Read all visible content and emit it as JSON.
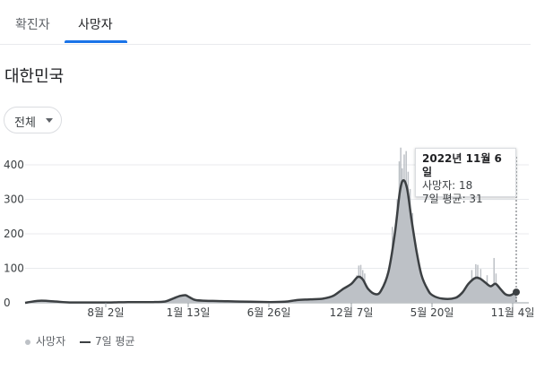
{
  "tabs": [
    {
      "label": "확진자",
      "active": false
    },
    {
      "label": "사망자",
      "active": true
    }
  ],
  "region": "대한민국",
  "filter": {
    "label": "전체"
  },
  "tooltip": {
    "date": "2022년 11월 6일",
    "deaths": "사망자: 18",
    "avg": "7일 평균: 31"
  },
  "legend": {
    "deaths": "사망자",
    "avg": "7일 평균"
  },
  "colors": {
    "accent": "#1a73e8",
    "bars": "#bdc1c6",
    "area": "#bdc1c6",
    "line": "#3c4043"
  },
  "chart_data": {
    "type": "area",
    "x_ticks": [
      "8월 2일",
      "1월 13일",
      "6월 26일",
      "12월 7일",
      "5월 20일",
      "11월 4일"
    ],
    "y_ticks": [
      "0",
      "100",
      "200",
      "300",
      "400"
    ],
    "ylim": [
      0,
      450
    ],
    "x_range": [
      "2020-02-15",
      "2022-11-06"
    ],
    "series": [
      {
        "name": "7일 평균",
        "points": [
          [
            "2020-02-15",
            0
          ],
          [
            "2020-03-15",
            6
          ],
          [
            "2020-04-15",
            4
          ],
          [
            "2020-05-15",
            1
          ],
          [
            "2020-07-01",
            1
          ],
          [
            "2020-08-02",
            1
          ],
          [
            "2020-09-10",
            2
          ],
          [
            "2020-11-01",
            2
          ],
          [
            "2020-11-25",
            4
          ],
          [
            "2020-12-10",
            12
          ],
          [
            "2020-12-25",
            20
          ],
          [
            "2021-01-05",
            22
          ],
          [
            "2021-01-13",
            16
          ],
          [
            "2021-01-25",
            8
          ],
          [
            "2021-02-15",
            6
          ],
          [
            "2021-03-15",
            5
          ],
          [
            "2021-04-15",
            4
          ],
          [
            "2021-05-15",
            3
          ],
          [
            "2021-06-26",
            2
          ],
          [
            "2021-07-25",
            3
          ],
          [
            "2021-08-20",
            8
          ],
          [
            "2021-09-15",
            10
          ],
          [
            "2021-10-10",
            12
          ],
          [
            "2021-10-31",
            20
          ],
          [
            "2021-11-20",
            40
          ],
          [
            "2021-12-07",
            55
          ],
          [
            "2021-12-20",
            75
          ],
          [
            "2021-12-30",
            68
          ],
          [
            "2022-01-10",
            40
          ],
          [
            "2022-01-25",
            25
          ],
          [
            "2022-02-05",
            35
          ],
          [
            "2022-02-20",
            90
          ],
          [
            "2022-03-05",
            200
          ],
          [
            "2022-03-15",
            320
          ],
          [
            "2022-03-22",
            355
          ],
          [
            "2022-03-30",
            330
          ],
          [
            "2022-04-08",
            240
          ],
          [
            "2022-04-18",
            150
          ],
          [
            "2022-04-28",
            80
          ],
          [
            "2022-05-10",
            40
          ],
          [
            "2022-05-20",
            22
          ],
          [
            "2022-06-10",
            12
          ],
          [
            "2022-07-05",
            14
          ],
          [
            "2022-07-20",
            30
          ],
          [
            "2022-08-01",
            55
          ],
          [
            "2022-08-15",
            72
          ],
          [
            "2022-08-25",
            70
          ],
          [
            "2022-09-05",
            58
          ],
          [
            "2022-09-15",
            48
          ],
          [
            "2022-09-25",
            55
          ],
          [
            "2022-10-05",
            40
          ],
          [
            "2022-10-15",
            25
          ],
          [
            "2022-10-25",
            22
          ],
          [
            "2022-11-06",
            31
          ]
        ]
      },
      {
        "name": "사망자",
        "bars": [
          [
            "2021-12-18",
            80
          ],
          [
            "2021-12-22",
            108
          ],
          [
            "2021-12-26",
            110
          ],
          [
            "2021-12-30",
            95
          ],
          [
            "2022-01-03",
            85
          ],
          [
            "2022-02-28",
            220
          ],
          [
            "2022-03-05",
            200
          ],
          [
            "2022-03-10",
            300
          ],
          [
            "2022-03-14",
            410
          ],
          [
            "2022-03-17",
            450
          ],
          [
            "2022-03-20",
            390
          ],
          [
            "2022-03-24",
            430
          ],
          [
            "2022-03-28",
            440
          ],
          [
            "2022-04-01",
            380
          ],
          [
            "2022-04-05",
            330
          ],
          [
            "2022-04-10",
            260
          ],
          [
            "2022-08-08",
            95
          ],
          [
            "2022-08-16",
            112
          ],
          [
            "2022-08-20",
            110
          ],
          [
            "2022-08-26",
            98
          ],
          [
            "2022-09-08",
            80
          ],
          [
            "2022-09-15",
            45
          ],
          [
            "2022-09-22",
            130
          ],
          [
            "2022-09-26",
            85
          ],
          [
            "2022-11-06",
            18
          ]
        ]
      }
    ],
    "highlight": {
      "date": "2022-11-06",
      "value": 31
    }
  }
}
